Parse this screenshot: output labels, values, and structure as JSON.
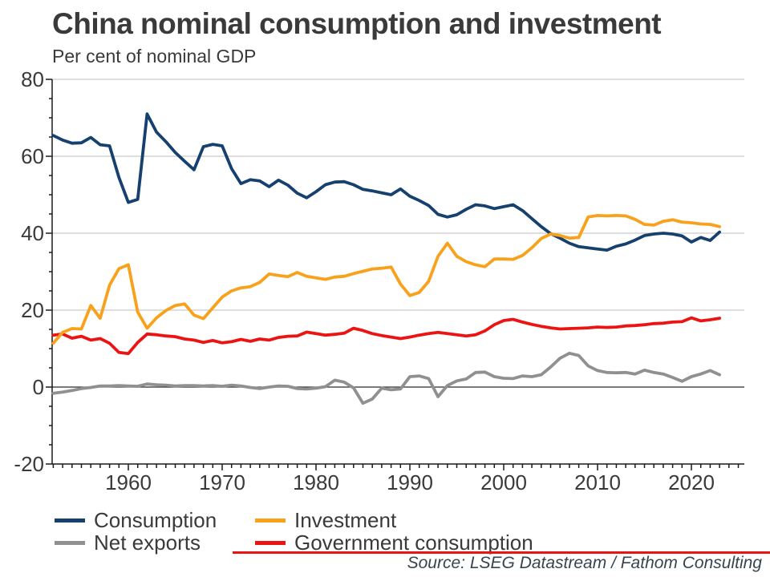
{
  "title": "China nominal consumption and investment",
  "subtitle": "Per cent of nominal GDP",
  "source": "Source: LSEG Datastream / Fathom Consulting",
  "colors": {
    "consumption": "#16416F",
    "investment": "#F8A11B",
    "net_exports": "#909090",
    "government_consumption": "#EC1313",
    "grid": "#CBCBCB",
    "zero_line": "#2B2B2B",
    "axis": "#1A1A1A",
    "text": "#3A3A3A",
    "source_text": "#36454F",
    "accent_rule": "#EC1313"
  },
  "legend": [
    {
      "label": "Consumption",
      "color": "#16416F"
    },
    {
      "label": "Investment",
      "color": "#F8A11B"
    },
    {
      "label": "Net exports",
      "color": "#909090"
    },
    {
      "label": "Government consumption",
      "color": "#EC1313"
    }
  ],
  "chart_data": {
    "type": "line",
    "title": "China nominal consumption and investment",
    "subtitle": "Per cent of nominal GDP",
    "xlabel": "",
    "ylabel": "Per cent of nominal GDP",
    "ylim": [
      -20,
      80
    ],
    "xlim": [
      1952,
      2025.5
    ],
    "y_ticks": [
      80,
      60,
      40,
      20,
      0,
      -20
    ],
    "x_ticks": [
      1960,
      1970,
      1980,
      1990,
      2000,
      2010,
      2020
    ],
    "minor_y_tick_step": 5,
    "minor_x_tick_step": 1,
    "grid": true,
    "legend_position": "bottom",
    "x": [
      1952,
      1953,
      1954,
      1955,
      1956,
      1957,
      1958,
      1959,
      1960,
      1961,
      1962,
      1963,
      1964,
      1965,
      1966,
      1967,
      1968,
      1969,
      1970,
      1971,
      1972,
      1973,
      1974,
      1975,
      1976,
      1977,
      1978,
      1979,
      1980,
      1981,
      1982,
      1983,
      1984,
      1985,
      1986,
      1987,
      1988,
      1989,
      1990,
      1991,
      1992,
      1993,
      1994,
      1995,
      1996,
      1997,
      1998,
      1999,
      2000,
      2001,
      2002,
      2003,
      2004,
      2005,
      2006,
      2007,
      2008,
      2009,
      2010,
      2011,
      2012,
      2013,
      2014,
      2015,
      2016,
      2017,
      2018,
      2019,
      2020,
      2021,
      2022,
      2023
    ],
    "series": [
      {
        "name": "Consumption",
        "color": "#16416F",
        "values": [
          65.4,
          64.2,
          63.4,
          63.5,
          64.9,
          63.0,
          62.7,
          54.5,
          48.0,
          48.8,
          71.0,
          66.3,
          63.8,
          61.0,
          58.7,
          56.5,
          62.5,
          63.1,
          62.7,
          56.8,
          52.9,
          53.9,
          53.6,
          52.1,
          53.8,
          52.5,
          50.4,
          49.2,
          50.8,
          52.6,
          53.3,
          53.4,
          52.6,
          51.4,
          51.0,
          50.5,
          50.0,
          51.5,
          49.6,
          48.5,
          47.2,
          44.9,
          44.2,
          44.8,
          46.2,
          47.4,
          47.1,
          46.4,
          46.9,
          47.4,
          45.9,
          43.8,
          41.7,
          39.9,
          38.7,
          37.4,
          36.5,
          36.2,
          35.9,
          35.6,
          36.6,
          37.2,
          38.2,
          39.4,
          39.8,
          40.0,
          39.8,
          39.3,
          37.7,
          38.9,
          38.1,
          40.3
        ]
      },
      {
        "name": "Investment",
        "color": "#F8A11B",
        "values": [
          11.4,
          14.2,
          15.2,
          15.1,
          21.2,
          17.9,
          26.5,
          30.8,
          31.8,
          19.5,
          15.3,
          18.0,
          19.9,
          21.2,
          21.6,
          18.7,
          17.8,
          20.6,
          23.4,
          25.0,
          25.8,
          26.1,
          27.2,
          29.4,
          29.0,
          28.7,
          29.8,
          28.8,
          28.4,
          28.0,
          28.6,
          28.8,
          29.5,
          30.1,
          30.7,
          30.9,
          31.2,
          26.8,
          23.8,
          24.6,
          27.5,
          34.0,
          37.4,
          34.0,
          32.6,
          31.8,
          31.3,
          33.3,
          33.3,
          33.2,
          34.2,
          36.2,
          38.6,
          39.8,
          39.4,
          38.7,
          38.9,
          44.2,
          44.6,
          44.5,
          44.6,
          44.5,
          43.6,
          42.3,
          42.1,
          43.1,
          43.5,
          42.9,
          42.7,
          42.4,
          42.3,
          41.7
        ]
      },
      {
        "name": "Net exports",
        "color": "#909090",
        "values": [
          -1.6,
          -1.3,
          -0.9,
          -0.4,
          -0.1,
          0.3,
          0.3,
          0.4,
          0.3,
          0.2,
          0.8,
          0.6,
          0.5,
          0.3,
          0.4,
          0.4,
          0.3,
          0.4,
          0.2,
          0.5,
          0.3,
          -0.1,
          -0.4,
          0.0,
          0.3,
          0.2,
          -0.4,
          -0.5,
          -0.3,
          0.1,
          1.8,
          1.3,
          -0.2,
          -4.2,
          -3.1,
          -0.3,
          -0.7,
          -0.5,
          2.7,
          2.9,
          2.2,
          -2.5,
          0.4,
          1.6,
          2.1,
          3.8,
          3.9,
          2.7,
          2.3,
          2.2,
          2.9,
          2.7,
          3.2,
          5.2,
          7.5,
          8.8,
          8.2,
          5.5,
          4.3,
          3.8,
          3.7,
          3.8,
          3.4,
          4.4,
          3.8,
          3.4,
          2.5,
          1.5,
          2.7,
          3.4,
          4.3,
          3.2
        ]
      },
      {
        "name": "Government consumption",
        "color": "#EC1313",
        "values": [
          13.5,
          13.8,
          12.7,
          13.2,
          12.2,
          12.6,
          11.4,
          9.0,
          8.7,
          11.6,
          13.8,
          13.6,
          13.3,
          13.1,
          12.5,
          12.2,
          11.6,
          12.1,
          11.5,
          11.8,
          12.4,
          11.9,
          12.5,
          12.2,
          12.9,
          13.2,
          13.3,
          14.3,
          13.9,
          13.5,
          13.7,
          14.0,
          15.3,
          14.7,
          13.9,
          13.4,
          13.0,
          12.6,
          13.0,
          13.5,
          13.9,
          14.2,
          13.9,
          13.6,
          13.3,
          13.6,
          14.6,
          16.2,
          17.3,
          17.6,
          16.9,
          16.3,
          15.8,
          15.4,
          15.1,
          15.2,
          15.3,
          15.4,
          15.6,
          15.5,
          15.6,
          15.9,
          16.0,
          16.2,
          16.5,
          16.6,
          16.9,
          17.0,
          18.0,
          17.2,
          17.5,
          17.9
        ]
      }
    ]
  }
}
